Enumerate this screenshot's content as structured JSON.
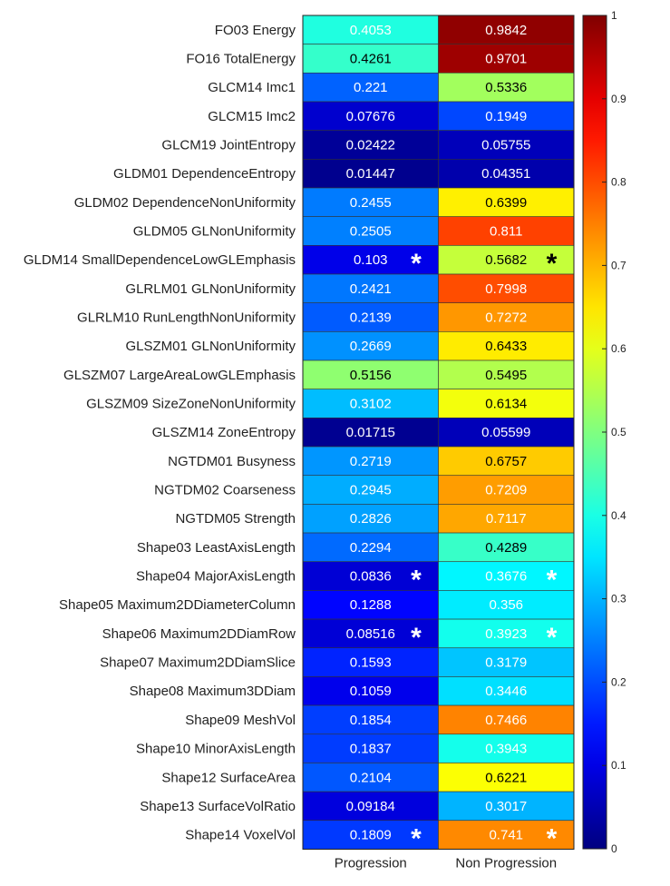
{
  "chart_data": {
    "type": "heatmap",
    "title": "",
    "xlabel": "",
    "ylabel": "",
    "columns": [
      "Progression",
      "Non Progression"
    ],
    "rows": [
      {
        "label": "FO03 Energy",
        "values": [
          0.4053,
          0.9842
        ],
        "stars": [
          false,
          false
        ]
      },
      {
        "label": "FO16 TotalEnergy",
        "values": [
          0.4261,
          0.9701
        ],
        "stars": [
          false,
          false
        ]
      },
      {
        "label": "GLCM14 Imc1",
        "values": [
          0.221,
          0.5336
        ],
        "stars": [
          false,
          false
        ]
      },
      {
        "label": "GLCM15 Imc2",
        "values": [
          0.07676,
          0.1949
        ],
        "stars": [
          false,
          false
        ]
      },
      {
        "label": "GLCM19 JointEntropy",
        "values": [
          0.02422,
          0.05755
        ],
        "stars": [
          false,
          false
        ]
      },
      {
        "label": "GLDM01 DependenceEntropy",
        "values": [
          0.01447,
          0.04351
        ],
        "stars": [
          false,
          false
        ]
      },
      {
        "label": "GLDM02 DependenceNonUniformity",
        "values": [
          0.2455,
          0.6399
        ],
        "stars": [
          false,
          false
        ]
      },
      {
        "label": "GLDM05 GLNonUniformity",
        "values": [
          0.2505,
          0.811
        ],
        "stars": [
          false,
          false
        ]
      },
      {
        "label": "GLDM14 SmallDependenceLowGLEmphasis",
        "values": [
          0.103,
          0.5682
        ],
        "stars": [
          true,
          true
        ]
      },
      {
        "label": "GLRLM01 GLNonUniformity",
        "values": [
          0.2421,
          0.7998
        ],
        "stars": [
          false,
          false
        ]
      },
      {
        "label": "GLRLM10 RunLengthNonUniformity",
        "values": [
          0.2139,
          0.7272
        ],
        "stars": [
          false,
          false
        ]
      },
      {
        "label": "GLSZM01 GLNonUniformity",
        "values": [
          0.2669,
          0.6433
        ],
        "stars": [
          false,
          false
        ]
      },
      {
        "label": "GLSZM07 LargeAreaLowGLEmphasis",
        "values": [
          0.5156,
          0.5495
        ],
        "stars": [
          false,
          false
        ]
      },
      {
        "label": "GLSZM09 SizeZoneNonUniformity",
        "values": [
          0.3102,
          0.6134
        ],
        "stars": [
          false,
          false
        ]
      },
      {
        "label": "GLSZM14 ZoneEntropy",
        "values": [
          0.01715,
          0.05599
        ],
        "stars": [
          false,
          false
        ]
      },
      {
        "label": "NGTDM01 Busyness",
        "values": [
          0.2719,
          0.6757
        ],
        "stars": [
          false,
          false
        ]
      },
      {
        "label": "NGTDM02 Coarseness",
        "values": [
          0.2945,
          0.7209
        ],
        "stars": [
          false,
          false
        ]
      },
      {
        "label": "NGTDM05 Strength",
        "values": [
          0.2826,
          0.7117
        ],
        "stars": [
          false,
          false
        ]
      },
      {
        "label": "Shape03 LeastAxisLength",
        "values": [
          0.2294,
          0.4289
        ],
        "stars": [
          false,
          false
        ]
      },
      {
        "label": "Shape04 MajorAxisLength",
        "values": [
          0.0836,
          0.3676
        ],
        "stars": [
          true,
          true
        ]
      },
      {
        "label": "Shape05 Maximum2DDiameterColumn",
        "values": [
          0.1288,
          0.356
        ],
        "stars": [
          false,
          false
        ]
      },
      {
        "label": "Shape06 Maximum2DDiamRow",
        "values": [
          0.08516,
          0.3923
        ],
        "stars": [
          true,
          true
        ]
      },
      {
        "label": "Shape07 Maximum2DDiamSlice",
        "values": [
          0.1593,
          0.3179
        ],
        "stars": [
          false,
          false
        ]
      },
      {
        "label": "Shape08 Maximum3DDiam",
        "values": [
          0.1059,
          0.3446
        ],
        "stars": [
          false,
          false
        ]
      },
      {
        "label": "Shape09 MeshVol",
        "values": [
          0.1854,
          0.7466
        ],
        "stars": [
          false,
          false
        ]
      },
      {
        "label": "Shape10 MinorAxisLength",
        "values": [
          0.1837,
          0.3943
        ],
        "stars": [
          false,
          false
        ]
      },
      {
        "label": "Shape12 SurfaceArea",
        "values": [
          0.2104,
          0.6221
        ],
        "stars": [
          false,
          false
        ]
      },
      {
        "label": "Shape13 SurfaceVolRatio",
        "values": [
          0.09184,
          0.3017
        ],
        "stars": [
          false,
          false
        ]
      },
      {
        "label": "Shape14 VoxelVol",
        "values": [
          0.1809,
          0.741
        ],
        "stars": [
          true,
          true
        ]
      }
    ],
    "star_symbol": "*",
    "colormap": "jet",
    "clim": [
      0,
      1
    ],
    "colorbar": {
      "position": "right",
      "ticks": [
        0,
        0.1,
        0.2,
        0.3,
        0.4,
        0.5,
        0.6,
        0.7,
        0.8,
        0.9,
        1
      ],
      "tick_labels": [
        "0",
        "0.1",
        "0.2",
        "0.3",
        "0.4",
        "0.5",
        "0.6",
        "0.7",
        "0.8",
        "0.9",
        "1"
      ]
    },
    "grid": true,
    "legend": false
  }
}
